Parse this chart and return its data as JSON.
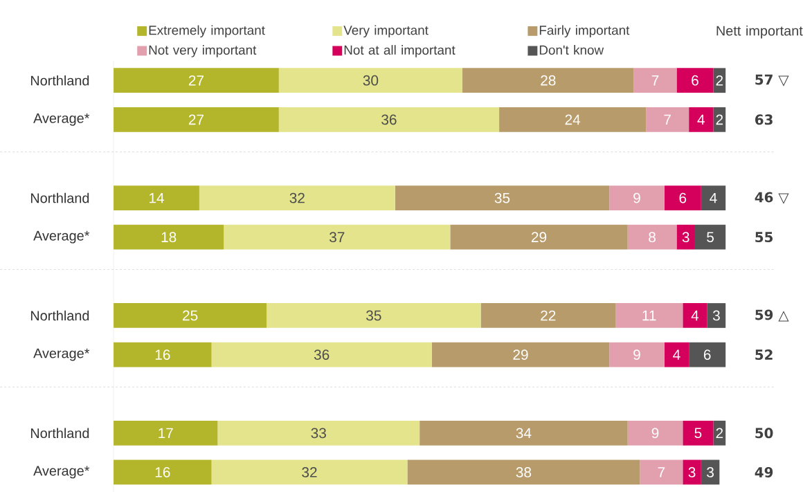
{
  "chart_data": {
    "type": "bar",
    "orientation": "horizontal",
    "stacked": true,
    "data_labels": true,
    "legend": "top",
    "tick_labels": "y",
    "categories": [
      "Northland",
      "Average*",
      "Northland",
      "Average*",
      "Northland",
      "Average*",
      "Northland",
      "Average*"
    ],
    "series": [
      {
        "name": "Extremely important",
        "color": "#b3b52a",
        "values": [
          27,
          27,
          14,
          18,
          25,
          16,
          17,
          16
        ]
      },
      {
        "name": "Very important",
        "color": "#e4e48c",
        "values": [
          30,
          36,
          32,
          37,
          35,
          36,
          33,
          32
        ]
      },
      {
        "name": "Fairly important",
        "color": "#b89b6a",
        "values": [
          28,
          24,
          35,
          29,
          22,
          29,
          34,
          38
        ]
      },
      {
        "name": "Not very important",
        "color": "#e2a0ae",
        "values": [
          7,
          7,
          9,
          8,
          11,
          9,
          9,
          7
        ]
      },
      {
        "name": "Not at all important",
        "color": "#d4005c",
        "values": [
          6,
          4,
          6,
          3,
          4,
          4,
          5,
          3
        ]
      },
      {
        "name": "Don't know",
        "color": "#555555",
        "values": [
          2,
          2,
          4,
          5,
          3,
          6,
          2,
          3
        ]
      }
    ],
    "annotations": [
      "Nett important",
      "57 ▽",
      "63",
      "46 ▽",
      "55",
      "59 △",
      "52",
      "50",
      "49"
    ]
  }
}
